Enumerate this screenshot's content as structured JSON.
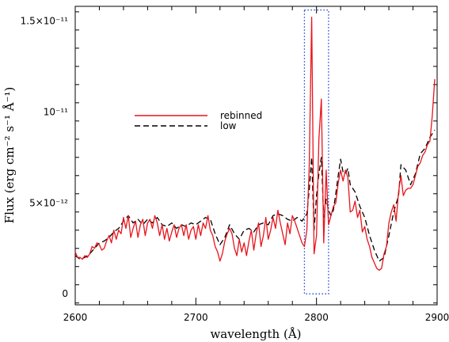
{
  "chart_data": {
    "type": "line",
    "xlabel": "wavelength (Å)",
    "ylabel": "Flux (erg cm⁻² s⁻¹ Å⁻¹)",
    "xlim": [
      2600,
      2900
    ],
    "ylim": [
      -6e-13,
      1.58e-11
    ],
    "x_ticks": [
      {
        "value": 2600,
        "label": "2600"
      },
      {
        "value": 2700,
        "label": "2700"
      },
      {
        "value": 2800,
        "label": "2800"
      },
      {
        "value": 2900,
        "label": "2900"
      }
    ],
    "y_ticks": [
      {
        "value": 0,
        "label": "0"
      },
      {
        "value": 5e-12,
        "label": "5×10⁻¹²"
      },
      {
        "value": 1e-11,
        "label": "10⁻¹¹"
      },
      {
        "value": 1.5e-11,
        "label": "1.5×10⁻¹¹"
      }
    ],
    "grid": false,
    "legend": {
      "placement": "upper-left-center"
    },
    "highlight_box": {
      "x": [
        2790,
        2810
      ],
      "y": [
        0,
        1.56e-11
      ],
      "color": "#1f3fd6",
      "style": "dotted"
    },
    "series": [
      {
        "name": "rebinned",
        "color": "#e8141c",
        "style": "solid",
        "points": [
          [
            2600,
            2.3e-12
          ],
          [
            2602,
            2e-12
          ],
          [
            2604,
            2e-12
          ],
          [
            2606,
            1.9e-12
          ],
          [
            2608,
            2.1e-12
          ],
          [
            2610,
            2e-12
          ],
          [
            2612,
            2.2e-12
          ],
          [
            2614,
            2.6e-12
          ],
          [
            2616,
            2.5e-12
          ],
          [
            2618,
            2.8e-12
          ],
          [
            2620,
            2.7e-12
          ],
          [
            2622,
            2.4e-12
          ],
          [
            2624,
            2.5e-12
          ],
          [
            2626,
            2.9e-12
          ],
          [
            2628,
            3.2e-12
          ],
          [
            2630,
            2.8e-12
          ],
          [
            2632,
            3.5e-12
          ],
          [
            2634,
            3e-12
          ],
          [
            2636,
            3.5e-12
          ],
          [
            2638,
            3.3e-12
          ],
          [
            2640,
            4.2e-12
          ],
          [
            2642,
            3.6e-12
          ],
          [
            2644,
            4.3e-12
          ],
          [
            2646,
            3.1e-12
          ],
          [
            2648,
            3.6e-12
          ],
          [
            2650,
            4e-12
          ],
          [
            2652,
            3.1e-12
          ],
          [
            2654,
            3.8e-12
          ],
          [
            2656,
            4.1e-12
          ],
          [
            2658,
            3.2e-12
          ],
          [
            2660,
            3.9e-12
          ],
          [
            2662,
            4.1e-12
          ],
          [
            2664,
            3.6e-12
          ],
          [
            2666,
            4.3e-12
          ],
          [
            2668,
            3.9e-12
          ],
          [
            2670,
            3.2e-12
          ],
          [
            2672,
            3.8e-12
          ],
          [
            2674,
            3e-12
          ],
          [
            2676,
            3.6e-12
          ],
          [
            2678,
            2.9e-12
          ],
          [
            2680,
            3.4e-12
          ],
          [
            2682,
            3.8e-12
          ],
          [
            2684,
            3.1e-12
          ],
          [
            2686,
            3.6e-12
          ],
          [
            2688,
            3.8e-12
          ],
          [
            2690,
            3.2e-12
          ],
          [
            2692,
            3.8e-12
          ],
          [
            2694,
            3e-12
          ],
          [
            2696,
            3.5e-12
          ],
          [
            2698,
            3.7e-12
          ],
          [
            2700,
            3e-12
          ],
          [
            2702,
            3.8e-12
          ],
          [
            2704,
            3.2e-12
          ],
          [
            2706,
            3.9e-12
          ],
          [
            2708,
            3.6e-12
          ],
          [
            2710,
            4.3e-12
          ],
          [
            2712,
            3.5e-12
          ],
          [
            2714,
            3.2e-12
          ],
          [
            2716,
            2.6e-12
          ],
          [
            2718,
            2.3e-12
          ],
          [
            2720,
            1.8e-12
          ],
          [
            2722,
            2.2e-12
          ],
          [
            2724,
            2.9e-12
          ],
          [
            2726,
            3.3e-12
          ],
          [
            2728,
            3.6e-12
          ],
          [
            2730,
            3.3e-12
          ],
          [
            2732,
            2.5e-12
          ],
          [
            2734,
            2.1e-12
          ],
          [
            2736,
            3e-12
          ],
          [
            2738,
            2.3e-12
          ],
          [
            2740,
            2.8e-12
          ],
          [
            2742,
            2.1e-12
          ],
          [
            2744,
            2.9e-12
          ],
          [
            2746,
            3.5e-12
          ],
          [
            2748,
            2.4e-12
          ],
          [
            2750,
            3.3e-12
          ],
          [
            2752,
            3.9e-12
          ],
          [
            2754,
            2.6e-12
          ],
          [
            2756,
            3.2e-12
          ],
          [
            2758,
            4.2e-12
          ],
          [
            2760,
            3e-12
          ],
          [
            2762,
            3.5e-12
          ],
          [
            2764,
            4.2e-12
          ],
          [
            2766,
            3.6e-12
          ],
          [
            2768,
            4.6e-12
          ],
          [
            2770,
            3.9e-12
          ],
          [
            2772,
            3.3e-12
          ],
          [
            2774,
            2.7e-12
          ],
          [
            2776,
            3.9e-12
          ],
          [
            2778,
            3.3e-12
          ],
          [
            2780,
            4.3e-12
          ],
          [
            2782,
            4e-12
          ],
          [
            2784,
            3.6e-12
          ],
          [
            2786,
            3.2e-12
          ],
          [
            2788,
            2.8e-12
          ],
          [
            2790,
            2.6e-12
          ],
          [
            2792,
            3.5e-12
          ],
          [
            2794,
            7e-12
          ],
          [
            2796,
            1.52e-11
          ],
          [
            2798,
            2.2e-12
          ],
          [
            2800,
            3.2e-12
          ],
          [
            2802,
            8.5e-12
          ],
          [
            2804,
            1.07e-11
          ],
          [
            2806,
            2.8e-12
          ],
          [
            2808,
            6.8e-12
          ],
          [
            2810,
            3.8e-12
          ],
          [
            2812,
            4.3e-12
          ],
          [
            2814,
            4.8e-12
          ],
          [
            2816,
            5e-12
          ],
          [
            2818,
            6.1e-12
          ],
          [
            2820,
            6.8e-12
          ],
          [
            2822,
            6.2e-12
          ],
          [
            2824,
            6.8e-12
          ],
          [
            2826,
            6.4e-12
          ],
          [
            2828,
            4.5e-12
          ],
          [
            2830,
            4.6e-12
          ],
          [
            2832,
            5.1e-12
          ],
          [
            2834,
            4.2e-12
          ],
          [
            2836,
            4.6e-12
          ],
          [
            2838,
            3.4e-12
          ],
          [
            2840,
            3.7e-12
          ],
          [
            2842,
            3e-12
          ],
          [
            2844,
            2.6e-12
          ],
          [
            2846,
            2e-12
          ],
          [
            2848,
            1.7e-12
          ],
          [
            2850,
            1.4e-12
          ],
          [
            2852,
            1.3e-12
          ],
          [
            2854,
            1.4e-12
          ],
          [
            2856,
            2.2e-12
          ],
          [
            2858,
            2.6e-12
          ],
          [
            2860,
            3.9e-12
          ],
          [
            2862,
            4.5e-12
          ],
          [
            2864,
            4.9e-12
          ],
          [
            2866,
            4e-12
          ],
          [
            2868,
            5.6e-12
          ],
          [
            2870,
            6.5e-12
          ],
          [
            2872,
            5.4e-12
          ],
          [
            2874,
            5.7e-12
          ],
          [
            2876,
            5.8e-12
          ],
          [
            2878,
            5.8e-12
          ],
          [
            2880,
            6e-12
          ],
          [
            2882,
            6.5e-12
          ],
          [
            2884,
            7e-12
          ],
          [
            2886,
            7.2e-12
          ],
          [
            2888,
            7.6e-12
          ],
          [
            2890,
            7.8e-12
          ],
          [
            2892,
            8.2e-12
          ],
          [
            2894,
            8.4e-12
          ],
          [
            2896,
            9.8e-12
          ],
          [
            2898,
            1.18e-11
          ]
        ]
      },
      {
        "name": "low",
        "color": "#000000",
        "style": "dashed",
        "points": [
          [
            2600,
            2.1e-12
          ],
          [
            2604,
            1.9e-12
          ],
          [
            2608,
            2e-12
          ],
          [
            2612,
            2.2e-12
          ],
          [
            2616,
            2.5e-12
          ],
          [
            2620,
            2.8e-12
          ],
          [
            2624,
            2.9e-12
          ],
          [
            2628,
            3.1e-12
          ],
          [
            2632,
            3.4e-12
          ],
          [
            2636,
            3.6e-12
          ],
          [
            2640,
            4e-12
          ],
          [
            2644,
            4.3e-12
          ],
          [
            2648,
            3.9e-12
          ],
          [
            2652,
            4.1e-12
          ],
          [
            2656,
            3.8e-12
          ],
          [
            2660,
            4.1e-12
          ],
          [
            2664,
            3.9e-12
          ],
          [
            2668,
            4.2e-12
          ],
          [
            2672,
            3.8e-12
          ],
          [
            2676,
            3.7e-12
          ],
          [
            2680,
            3.9e-12
          ],
          [
            2684,
            3.6e-12
          ],
          [
            2688,
            3.8e-12
          ],
          [
            2692,
            3.7e-12
          ],
          [
            2696,
            3.9e-12
          ],
          [
            2700,
            3.8e-12
          ],
          [
            2704,
            4e-12
          ],
          [
            2708,
            4.2e-12
          ],
          [
            2712,
            4.1e-12
          ],
          [
            2716,
            3.3e-12
          ],
          [
            2720,
            2.7e-12
          ],
          [
            2724,
            3.1e-12
          ],
          [
            2728,
            3.8e-12
          ],
          [
            2732,
            3.3e-12
          ],
          [
            2736,
            3e-12
          ],
          [
            2740,
            3.5e-12
          ],
          [
            2744,
            3.6e-12
          ],
          [
            2748,
            3.4e-12
          ],
          [
            2752,
            3.8e-12
          ],
          [
            2756,
            3.9e-12
          ],
          [
            2760,
            3.8e-12
          ],
          [
            2764,
            4.3e-12
          ],
          [
            2768,
            4.4e-12
          ],
          [
            2772,
            4.3e-12
          ],
          [
            2776,
            4.1e-12
          ],
          [
            2780,
            4e-12
          ],
          [
            2784,
            4.2e-12
          ],
          [
            2788,
            4e-12
          ],
          [
            2792,
            4.4e-12
          ],
          [
            2794,
            5.7e-12
          ],
          [
            2796,
            7.5e-12
          ],
          [
            2798,
            3.5e-12
          ],
          [
            2800,
            5.4e-12
          ],
          [
            2802,
            6.6e-12
          ],
          [
            2804,
            7.5e-12
          ],
          [
            2806,
            4.2e-12
          ],
          [
            2808,
            5.2e-12
          ],
          [
            2810,
            4.6e-12
          ],
          [
            2812,
            4.3e-12
          ],
          [
            2814,
            4.6e-12
          ],
          [
            2816,
            5.5e-12
          ],
          [
            2818,
            6.5e-12
          ],
          [
            2820,
            7.4e-12
          ],
          [
            2822,
            6.7e-12
          ],
          [
            2824,
            6.6e-12
          ],
          [
            2826,
            6.9e-12
          ],
          [
            2828,
            6e-12
          ],
          [
            2830,
            5.8e-12
          ],
          [
            2832,
            5.6e-12
          ],
          [
            2836,
            4.8e-12
          ],
          [
            2840,
            4.2e-12
          ],
          [
            2844,
            3.2e-12
          ],
          [
            2848,
            2.4e-12
          ],
          [
            2852,
            1.8e-12
          ],
          [
            2856,
            2e-12
          ],
          [
            2860,
            3.2e-12
          ],
          [
            2864,
            4.5e-12
          ],
          [
            2868,
            5.4e-12
          ],
          [
            2870,
            7.1e-12
          ],
          [
            2874,
            6.8e-12
          ],
          [
            2878,
            6e-12
          ],
          [
            2882,
            6.6e-12
          ],
          [
            2886,
            7.7e-12
          ],
          [
            2890,
            8e-12
          ],
          [
            2894,
            8.6e-12
          ],
          [
            2898,
            9e-12
          ]
        ]
      }
    ]
  }
}
